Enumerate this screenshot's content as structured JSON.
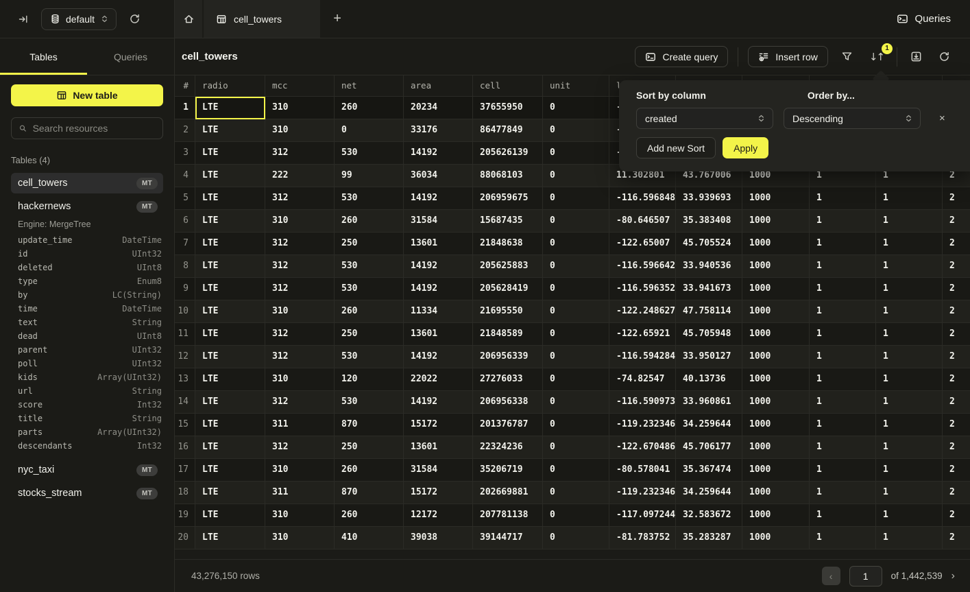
{
  "topbar": {
    "database_selector": {
      "value": "default"
    },
    "tab_label": "cell_towers",
    "new_tab": "+",
    "queries_button": "Queries"
  },
  "sidebar": {
    "tabs": [
      {
        "label": "Tables"
      },
      {
        "label": "Queries"
      }
    ],
    "new_table_button": "New table",
    "search_placeholder": "Search resources",
    "section_label": "Tables (4)",
    "tables": [
      {
        "name": "cell_towers",
        "badge": "MT"
      },
      {
        "name": "hackernews",
        "badge": "MT"
      },
      {
        "name": "nyc_taxi",
        "badge": "MT"
      },
      {
        "name": "stocks_stream",
        "badge": "MT"
      }
    ],
    "hackernews_engine": "Engine: MergeTree",
    "hackernews_schema": [
      {
        "name": "update_time",
        "type": "DateTime"
      },
      {
        "name": "id",
        "type": "UInt32"
      },
      {
        "name": "deleted",
        "type": "UInt8"
      },
      {
        "name": "type",
        "type": "Enum8"
      },
      {
        "name": "by",
        "type": "LC(String)"
      },
      {
        "name": "time",
        "type": "DateTime"
      },
      {
        "name": "text",
        "type": "String"
      },
      {
        "name": "dead",
        "type": "UInt8"
      },
      {
        "name": "parent",
        "type": "UInt32"
      },
      {
        "name": "poll",
        "type": "UInt32"
      },
      {
        "name": "kids",
        "type": "Array(UInt32)"
      },
      {
        "name": "url",
        "type": "String"
      },
      {
        "name": "score",
        "type": "Int32"
      },
      {
        "name": "title",
        "type": "String"
      },
      {
        "name": "parts",
        "type": "Array(UInt32)"
      },
      {
        "name": "descendants",
        "type": "Int32"
      }
    ]
  },
  "main": {
    "title": "cell_towers",
    "create_query_button": "Create query",
    "insert_row_button": "Insert row",
    "sort_badge_count": "1",
    "table": {
      "columns": [
        "#",
        "radio",
        "mcc",
        "net",
        "area",
        "cell",
        "unit",
        "lon",
        "",
        "",
        "",
        "",
        ""
      ],
      "rows": [
        [
          "1",
          "LTE",
          "310",
          "260",
          "20234",
          "37655950",
          "0",
          "-7",
          "",
          "",
          "",
          "",
          ""
        ],
        [
          "2",
          "LTE",
          "310",
          "0",
          "33176",
          "86477849",
          "0",
          "-8",
          "",
          "",
          "",
          "",
          ""
        ],
        [
          "3",
          "LTE",
          "312",
          "530",
          "14192",
          "205626139",
          "0",
          "-1",
          "",
          "",
          "",
          "",
          ""
        ],
        [
          "4",
          "LTE",
          "222",
          "99",
          "36034",
          "88068103",
          "0",
          "11.302801",
          "43.767006",
          "1000",
          "1",
          "1",
          "2"
        ],
        [
          "5",
          "LTE",
          "312",
          "530",
          "14192",
          "206959675",
          "0",
          "-116.596848",
          "33.939693",
          "1000",
          "1",
          "1",
          "2"
        ],
        [
          "6",
          "LTE",
          "310",
          "260",
          "31584",
          "15687435",
          "0",
          "-80.646507",
          "35.383408",
          "1000",
          "1",
          "1",
          "2"
        ],
        [
          "7",
          "LTE",
          "312",
          "250",
          "13601",
          "21848638",
          "0",
          "-122.65007",
          "45.705524",
          "1000",
          "1",
          "1",
          "2"
        ],
        [
          "8",
          "LTE",
          "312",
          "530",
          "14192",
          "205625883",
          "0",
          "-116.596642",
          "33.940536",
          "1000",
          "1",
          "1",
          "2"
        ],
        [
          "9",
          "LTE",
          "312",
          "530",
          "14192",
          "205628419",
          "0",
          "-116.596352",
          "33.941673",
          "1000",
          "1",
          "1",
          "2"
        ],
        [
          "10",
          "LTE",
          "310",
          "260",
          "11334",
          "21695550",
          "0",
          "-122.248627",
          "47.758114",
          "1000",
          "1",
          "1",
          "2"
        ],
        [
          "11",
          "LTE",
          "312",
          "250",
          "13601",
          "21848589",
          "0",
          "-122.65921",
          "45.705948",
          "1000",
          "1",
          "1",
          "2"
        ],
        [
          "12",
          "LTE",
          "312",
          "530",
          "14192",
          "206956339",
          "0",
          "-116.594284",
          "33.950127",
          "1000",
          "1",
          "1",
          "2"
        ],
        [
          "13",
          "LTE",
          "310",
          "120",
          "22022",
          "27276033",
          "0",
          "-74.82547",
          "40.13736",
          "1000",
          "1",
          "1",
          "2"
        ],
        [
          "14",
          "LTE",
          "312",
          "530",
          "14192",
          "206956338",
          "0",
          "-116.590973",
          "33.960861",
          "1000",
          "1",
          "1",
          "2"
        ],
        [
          "15",
          "LTE",
          "311",
          "870",
          "15172",
          "201376787",
          "0",
          "-119.232346",
          "34.259644",
          "1000",
          "1",
          "1",
          "2"
        ],
        [
          "16",
          "LTE",
          "312",
          "250",
          "13601",
          "22324236",
          "0",
          "-122.670486",
          "45.706177",
          "1000",
          "1",
          "1",
          "2"
        ],
        [
          "17",
          "LTE",
          "310",
          "260",
          "31584",
          "35206719",
          "0",
          "-80.578041",
          "35.367474",
          "1000",
          "1",
          "1",
          "2"
        ],
        [
          "18",
          "LTE",
          "311",
          "870",
          "15172",
          "202669881",
          "0",
          "-119.232346",
          "34.259644",
          "1000",
          "1",
          "1",
          "2"
        ],
        [
          "19",
          "LTE",
          "310",
          "260",
          "12172",
          "207781138",
          "0",
          "-117.097244",
          "32.583672",
          "1000",
          "1",
          "1",
          "2"
        ],
        [
          "20",
          "LTE",
          "310",
          "410",
          "39038",
          "39144717",
          "0",
          "-81.783752",
          "35.283287",
          "1000",
          "1",
          "1",
          "2"
        ]
      ]
    },
    "footer": {
      "row_count": "43,276,150 rows",
      "prev": "‹",
      "page": "1",
      "page_total": "of 1,442,539",
      "next": "›"
    }
  },
  "sort_popup": {
    "column_label": "Sort by column",
    "column_value": "created",
    "order_label": "Order by...",
    "order_value": "Descending",
    "close": "×",
    "add_button": "Add new Sort",
    "apply_button": "Apply"
  },
  "colors": {
    "accent": "#f3f449",
    "background": "#1b1b17"
  }
}
